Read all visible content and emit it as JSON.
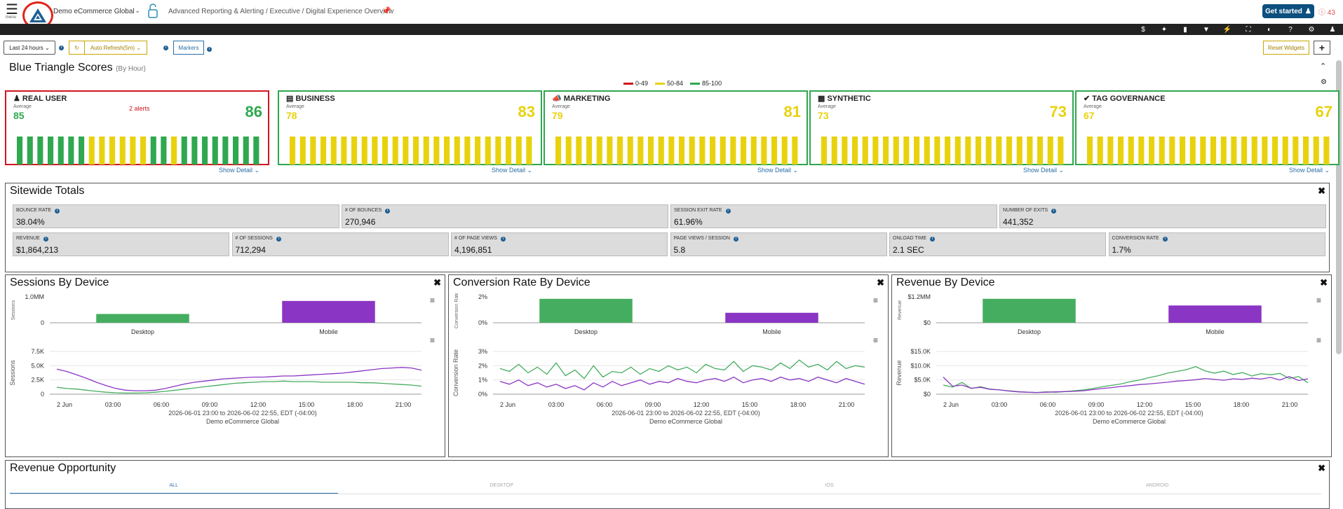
{
  "header": {
    "menu_label": "menu",
    "app_name": "Demo eCommerce Global",
    "breadcrumb": "Advanced Reporting & Alerting / Executive / Digital Experience Overview",
    "get_started": "Get started",
    "alert_count": "43"
  },
  "controls": {
    "range": "Last 24 hours",
    "auto_refresh": "Auto Refresh(5m)",
    "markers": "Markers",
    "reset": "Reset Widgets",
    "add": "+"
  },
  "scores": {
    "title": "Blue Triangle Scores",
    "subtitle": "(By Hour)",
    "legend": [
      {
        "label": "0-49",
        "color": "#d1151f"
      },
      {
        "label": "50-84",
        "color": "#e8d20e"
      },
      {
        "label": "85-100",
        "color": "#2fa84f"
      }
    ],
    "avg_label": "Average",
    "show_detail": "Show Detail",
    "cards": [
      {
        "title": "REAL USER",
        "avg": "85",
        "score": "86",
        "alert": "2 alerts",
        "score_color": "#2fa84f",
        "bars": [
          "g",
          "g",
          "g",
          "g",
          "g",
          "g",
          "g",
          "y",
          "y",
          "y",
          "y",
          "y",
          "y",
          "g",
          "g",
          "y",
          "g",
          "g",
          "g",
          "g",
          "g",
          "g",
          "g",
          "g"
        ]
      },
      {
        "title": "BUSINESS",
        "avg": "78",
        "score": "83",
        "alert": "",
        "score_color": "#e8d20e",
        "bars": [
          "y",
          "y",
          "y",
          "y",
          "y",
          "y",
          "y",
          "y",
          "y",
          "y",
          "y",
          "y",
          "y",
          "y",
          "y",
          "y",
          "y",
          "y",
          "y",
          "y",
          "y",
          "y",
          "y",
          "y"
        ]
      },
      {
        "title": "MARKETING",
        "avg": "79",
        "score": "81",
        "alert": "",
        "score_color": "#e8d20e",
        "bars": [
          "y",
          "y",
          "y",
          "y",
          "y",
          "y",
          "y",
          "y",
          "y",
          "y",
          "y",
          "y",
          "y",
          "y",
          "y",
          "y",
          "y",
          "y",
          "y",
          "y",
          "y",
          "y",
          "y",
          "y"
        ]
      },
      {
        "title": "SYNTHETIC",
        "avg": "73",
        "score": "73",
        "alert": "",
        "score_color": "#e8d20e",
        "bars": [
          "y",
          "y",
          "y",
          "y",
          "y",
          "y",
          "y",
          "y",
          "y",
          "y",
          "y",
          "y",
          "y",
          "y",
          "y",
          "y",
          "y",
          "y",
          "y",
          "y",
          "y",
          "y",
          "y",
          "y"
        ]
      },
      {
        "title": "TAG GOVERNANCE",
        "avg": "67",
        "score": "67",
        "alert": "",
        "score_color": "#e8d20e",
        "bars": [
          "y",
          "y",
          "y",
          "y",
          "y",
          "y",
          "y",
          "y",
          "y",
          "y",
          "y",
          "y",
          "y",
          "y",
          "y",
          "y",
          "y",
          "y",
          "y",
          "y",
          "y",
          "y",
          "y",
          "y"
        ]
      }
    ]
  },
  "totals": {
    "title": "Sitewide Totals",
    "row1": [
      {
        "label": "BOUNCE RATE",
        "value": "38.04%"
      },
      {
        "label": "# OF BOUNCES",
        "value": "270,946"
      },
      {
        "label": "SESSION EXIT RATE",
        "value": "61.96%"
      },
      {
        "label": "NUMBER OF EXITS",
        "value": "441,352"
      }
    ],
    "row2": [
      {
        "label": "REVENUE",
        "value": "$1,864,213"
      },
      {
        "label": "# OF SESSIONS",
        "value": "712,294"
      },
      {
        "label": "# OF PAGE VIEWS",
        "value": "4,196,851"
      },
      {
        "label": "PAGE VIEWS / SESSION",
        "value": "5.8"
      },
      {
        "label": "ONLOAD TIME",
        "value": "2.1 SEC"
      },
      {
        "label": "CONVERSION RATE",
        "value": "1.7%"
      }
    ]
  },
  "charts_meta": {
    "caption_range": "2026-06-01 23:00 to 2026-06-02 22:55, EDT (-04:00)",
    "caption_site": "Demo eCommerce Global",
    "x_ticks": [
      "2 Jun",
      "03:00",
      "06:00",
      "09:00",
      "12:00",
      "15:00",
      "18:00",
      "21:00"
    ]
  },
  "chart_data": [
    {
      "type": "bar",
      "title": "Sessions By Device",
      "ylabel": "Sessions",
      "categories": [
        "Desktop",
        "Mobile"
      ],
      "values": [
        330000,
        820000
      ],
      "yticks": [
        "0",
        "1.0MM"
      ],
      "ylim": [
        0,
        1000000
      ],
      "colors": [
        "#45ad5f",
        "#8a35c4"
      ]
    },
    {
      "type": "line",
      "title": "Sessions By Device",
      "ylabel": "Sessions",
      "yticks": [
        "0",
        "2.5K",
        "5.0K",
        "7.5K"
      ],
      "ylim": [
        0,
        7500
      ],
      "series": [
        {
          "color": "#8a35c4",
          "values": [
            4400,
            4000,
            3400,
            2800,
            2100,
            1500,
            1000,
            700,
            600,
            600,
            700,
            1000,
            1400,
            1800,
            2100,
            2300,
            2500,
            2700,
            2800,
            2900,
            3000,
            3000,
            3100,
            3200,
            3200,
            3300,
            3400,
            3500,
            3600,
            3700,
            3900,
            4100,
            4300,
            4500,
            4600,
            4700,
            4600,
            4200
          ]
        },
        {
          "color": "#45ad5f",
          "values": [
            1200,
            1000,
            900,
            700,
            500,
            350,
            250,
            200,
            200,
            250,
            350,
            500,
            700,
            900,
            1100,
            1300,
            1500,
            1700,
            1900,
            2000,
            2100,
            2200,
            2200,
            2300,
            2200,
            2200,
            2200,
            2100,
            2100,
            2100,
            2100,
            2000,
            2000,
            1900,
            1800,
            1700,
            1600,
            1400
          ]
        }
      ]
    },
    {
      "type": "bar",
      "title": "Conversion Rate By Device",
      "ylabel": "Conversion Rate",
      "categories": [
        "Desktop",
        "Mobile"
      ],
      "values": [
        1.8,
        0.75
      ],
      "yticks": [
        "0%",
        "2%"
      ],
      "ylim": [
        0,
        2
      ],
      "colors": [
        "#45ad5f",
        "#8a35c4"
      ]
    },
    {
      "type": "line",
      "title": "Conversion Rate By Device",
      "ylabel": "Conversion Rate",
      "yticks": [
        "0%",
        "1%",
        "2%",
        "3%"
      ],
      "ylim": [
        0,
        3
      ],
      "series": [
        {
          "color": "#45ad5f",
          "values": [
            1.8,
            1.6,
            2.1,
            1.5,
            1.9,
            1.4,
            2.2,
            1.3,
            1.7,
            1.1,
            2.0,
            1.2,
            1.6,
            1.5,
            1.9,
            1.4,
            1.8,
            1.6,
            2.0,
            1.7,
            1.9,
            1.5,
            2.1,
            1.8,
            1.7,
            2.3,
            1.6,
            2.0,
            1.9,
            1.7,
            2.2,
            1.8,
            2.4,
            1.9,
            2.1,
            1.7,
            2.3,
            1.8,
            2.0,
            1.9
          ]
        },
        {
          "color": "#8a35c4",
          "values": [
            0.9,
            0.7,
            1.0,
            0.6,
            0.8,
            0.5,
            0.7,
            0.4,
            0.6,
            0.3,
            0.8,
            0.5,
            0.9,
            0.6,
            0.8,
            1.0,
            0.7,
            0.9,
            0.8,
            1.1,
            0.9,
            0.8,
            1.0,
            1.1,
            0.9,
            1.2,
            0.8,
            1.0,
            1.1,
            0.9,
            1.2,
            1.0,
            1.1,
            0.9,
            1.2,
            1.0,
            0.8,
            1.1,
            0.9,
            0.7
          ]
        }
      ]
    },
    {
      "type": "bar",
      "title": "Revenue By Device",
      "ylabel": "Revenue",
      "categories": [
        "Desktop",
        "Mobile"
      ],
      "values": [
        1080000,
        780000
      ],
      "yticks": [
        "$0",
        "$1.2MM"
      ],
      "ylim": [
        0,
        1200000
      ],
      "colors": [
        "#45ad5f",
        "#8a35c4"
      ]
    },
    {
      "type": "line",
      "title": "Revenue By Device",
      "ylabel": "Revenue",
      "yticks": [
        "$0",
        "$5.0K",
        "$10.0K",
        "$15.0K"
      ],
      "ylim": [
        0,
        15000
      ],
      "series": [
        {
          "color": "#45ad5f",
          "values": [
            3200,
            2500,
            4100,
            2000,
            2600,
            1800,
            1500,
            1200,
            900,
            700,
            600,
            800,
            700,
            900,
            1200,
            1500,
            2000,
            2600,
            3100,
            3600,
            4400,
            5000,
            5800,
            6500,
            7400,
            8000,
            8600,
            9700,
            8200,
            7400,
            8100,
            6900,
            7600,
            6400,
            7200,
            6800,
            7300,
            5500,
            6200,
            4000
          ]
        },
        {
          "color": "#8a35c4",
          "values": [
            6000,
            2800,
            3200,
            2100,
            2400,
            1700,
            1500,
            1100,
            800,
            700,
            600,
            700,
            800,
            900,
            1000,
            1200,
            1600,
            2000,
            2300,
            2700,
            3000,
            3400,
            3600,
            3900,
            4200,
            4600,
            4800,
            5100,
            5500,
            5200,
            4900,
            5400,
            5200,
            5600,
            5300,
            5900,
            5000,
            6200,
            4800,
            5400
          ]
        }
      ]
    }
  ],
  "opportunity": {
    "title": "Revenue Opportunity",
    "tabs": [
      "ALL",
      "DESKTOP",
      "IOS",
      "ANDROID"
    ]
  }
}
